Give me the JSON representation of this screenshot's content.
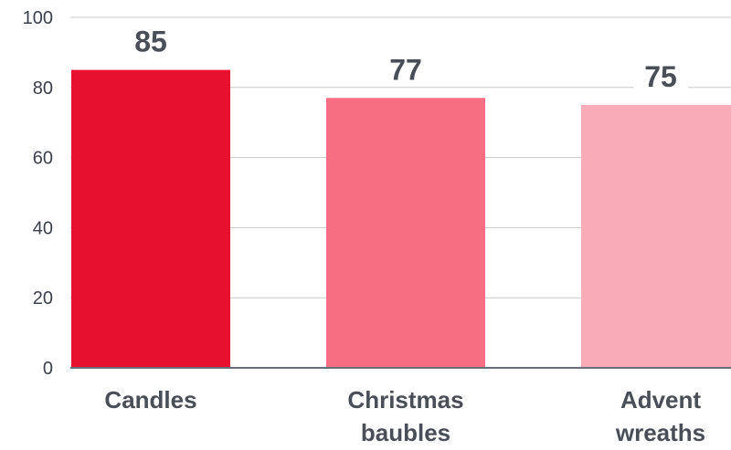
{
  "chart_data": {
    "type": "bar",
    "title": "",
    "xlabel": "",
    "ylabel": "",
    "categories": [
      "Candles",
      "Christmas baubles",
      "Advent wreaths"
    ],
    "category_lines": [
      [
        "Candles"
      ],
      [
        "Christmas",
        "baubles"
      ],
      [
        "Advent",
        "wreaths"
      ]
    ],
    "values": [
      85,
      77,
      75
    ],
    "value_labels": [
      "85",
      "77",
      "75"
    ],
    "colors": [
      "#e8102f",
      "#f76d82",
      "#f9abb8"
    ],
    "ylim": [
      0,
      100
    ],
    "yticks": [
      0,
      20,
      40,
      60,
      80,
      100
    ],
    "ytick_labels": [
      "0",
      "20",
      "40",
      "60",
      "80",
      "100"
    ],
    "grid": true,
    "legend": "none"
  }
}
